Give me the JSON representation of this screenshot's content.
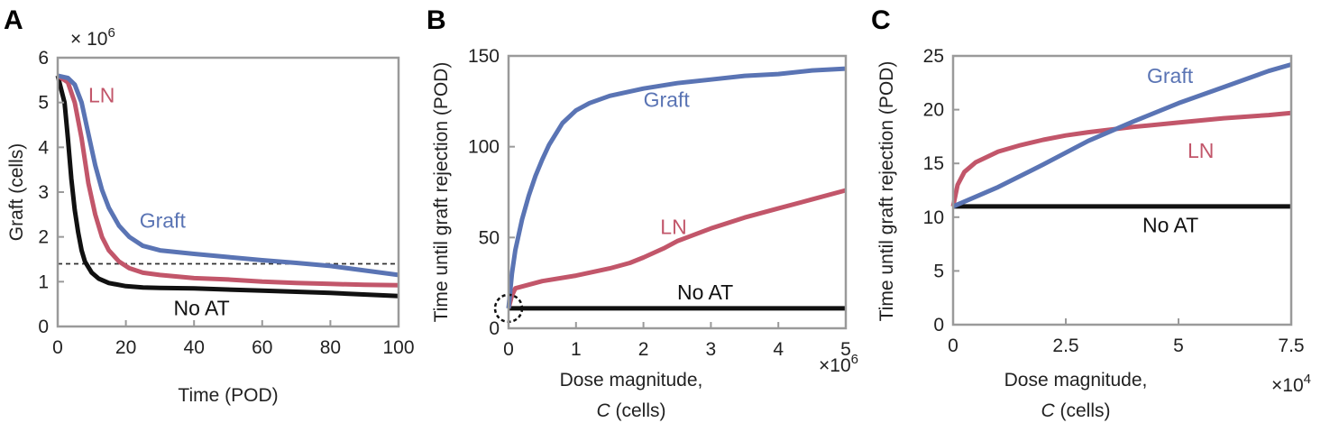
{
  "colors": {
    "graft": "#5a74b4",
    "ln": "#c2566a",
    "noat": "#111111",
    "axis": "#9a9a9a"
  },
  "chart_data": [
    {
      "panel": "A",
      "type": "line",
      "xlabel": "Time (POD)",
      "ylabel": "Graft (cells)",
      "y_multiplier": "× 10^6",
      "xlim": [
        0,
        100
      ],
      "ylim": [
        0,
        6
      ],
      "xticks": [
        0,
        20,
        40,
        60,
        80,
        100
      ],
      "yticks": [
        0,
        1,
        2,
        3,
        4,
        5,
        6
      ],
      "threshold": {
        "y": 1.4,
        "style": "dashed"
      },
      "series": [
        {
          "name": "Graft",
          "color": "#5a74b4",
          "x": [
            0,
            3,
            5,
            7,
            9,
            11,
            13,
            15,
            18,
            21,
            25,
            30,
            40,
            50,
            60,
            70,
            80,
            90,
            100
          ],
          "y": [
            5.6,
            5.55,
            5.4,
            5.0,
            4.3,
            3.6,
            3.05,
            2.65,
            2.25,
            2.0,
            1.8,
            1.7,
            1.62,
            1.55,
            1.48,
            1.42,
            1.35,
            1.25,
            1.15
          ]
        },
        {
          "name": "LN",
          "color": "#c2566a",
          "x": [
            0,
            3,
            5,
            7,
            9,
            11,
            13,
            15,
            18,
            21,
            25,
            30,
            40,
            50,
            60,
            70,
            80,
            90,
            100
          ],
          "y": [
            5.6,
            5.45,
            5.0,
            4.2,
            3.2,
            2.5,
            2.0,
            1.7,
            1.45,
            1.3,
            1.2,
            1.15,
            1.08,
            1.05,
            1.0,
            0.97,
            0.95,
            0.93,
            0.92
          ]
        },
        {
          "name": "No AT",
          "color": "#111111",
          "x": [
            0,
            2,
            3,
            4,
            5,
            6,
            7,
            8,
            10,
            12,
            15,
            20,
            25,
            30,
            40,
            60,
            80,
            100
          ],
          "y": [
            5.6,
            5.0,
            4.2,
            3.3,
            2.6,
            2.1,
            1.7,
            1.45,
            1.2,
            1.07,
            0.97,
            0.9,
            0.87,
            0.86,
            0.85,
            0.8,
            0.75,
            0.68
          ]
        }
      ],
      "annotations": [
        {
          "text": "LN",
          "series": "LN",
          "x": 9,
          "y": 5.0
        },
        {
          "text": "Graft",
          "series": "Graft",
          "x": 24,
          "y": 2.2
        },
        {
          "text": "No AT",
          "series": "No AT",
          "x": 34,
          "y": 0.25
        }
      ]
    },
    {
      "panel": "B",
      "type": "line",
      "xlabel_line1": "Dose magnitude,",
      "xlabel_line2": "C (cells)",
      "ylabel": "Time until graft rejection (POD)",
      "x_multiplier": "×10^6",
      "xlim": [
        0,
        5
      ],
      "ylim": [
        0,
        150
      ],
      "xticks": [
        0,
        1,
        2,
        3,
        4,
        5
      ],
      "yticks": [
        0,
        50,
        100,
        150
      ],
      "circle_marker": {
        "x": 0,
        "y": 11
      },
      "series": [
        {
          "name": "Graft",
          "color": "#5a74b4",
          "x": [
            0,
            0.05,
            0.1,
            0.2,
            0.3,
            0.4,
            0.5,
            0.6,
            0.8,
            1.0,
            1.2,
            1.5,
            2.0,
            2.5,
            3.0,
            3.5,
            4.0,
            4.5,
            5.0
          ],
          "y": [
            11,
            30,
            43,
            60,
            73,
            84,
            93,
            101,
            113,
            120,
            124,
            128,
            132,
            135,
            137,
            139,
            140,
            142,
            143
          ]
        },
        {
          "name": "LN",
          "color": "#c2566a",
          "x": [
            0,
            0.05,
            0.1,
            0.3,
            0.5,
            1.0,
            1.5,
            1.8,
            2.0,
            2.3,
            2.5,
            3.0,
            3.5,
            4.0,
            4.5,
            5.0
          ],
          "y": [
            11,
            18,
            22,
            24,
            26,
            29,
            33,
            36,
            39,
            44,
            48,
            55,
            61,
            66,
            71,
            76
          ]
        },
        {
          "name": "No AT",
          "color": "#111111",
          "x": [
            0,
            5
          ],
          "y": [
            11,
            11
          ]
        }
      ],
      "annotations": [
        {
          "text": "Graft",
          "series": "Graft",
          "x": 2.0,
          "y": 122
        },
        {
          "text": "LN",
          "series": "LN",
          "x": 2.25,
          "y": 52
        },
        {
          "text": "No AT",
          "series": "No AT",
          "x": 2.5,
          "y": 16
        }
      ]
    },
    {
      "panel": "C",
      "type": "line",
      "xlabel_line1": "Dose magnitude,",
      "xlabel_line2": "C (cells)",
      "ylabel": "Time until graft rejection (POD)",
      "x_multiplier": "×10^4",
      "xlim": [
        0,
        7.5
      ],
      "ylim": [
        0,
        25
      ],
      "xticks": [
        0,
        2.5,
        5,
        7.5
      ],
      "yticks": [
        0,
        5,
        10,
        15,
        20,
        25
      ],
      "series": [
        {
          "name": "Graft",
          "color": "#5a74b4",
          "x": [
            0,
            1,
            2,
            3,
            4,
            5,
            6,
            7,
            7.5
          ],
          "y": [
            11,
            12.8,
            14.9,
            17.1,
            18.9,
            20.6,
            22.1,
            23.6,
            24.2
          ]
        },
        {
          "name": "LN",
          "color": "#c2566a",
          "x": [
            0,
            0.1,
            0.25,
            0.5,
            1,
            1.5,
            2,
            2.5,
            3,
            4,
            5,
            6,
            7,
            7.5
          ],
          "y": [
            11,
            13.0,
            14.2,
            15.1,
            16.1,
            16.7,
            17.2,
            17.6,
            17.9,
            18.4,
            18.8,
            19.2,
            19.5,
            19.7
          ]
        },
        {
          "name": "No AT",
          "color": "#111111",
          "x": [
            0,
            7.5
          ],
          "y": [
            11,
            11
          ]
        }
      ],
      "annotations": [
        {
          "text": "Graft",
          "series": "Graft",
          "x": 4.3,
          "y": 22.5
        },
        {
          "text": "LN",
          "series": "LN",
          "x": 5.2,
          "y": 15.5
        },
        {
          "text": "No AT",
          "series": "No AT",
          "x": 4.2,
          "y": 8.6
        }
      ]
    }
  ]
}
